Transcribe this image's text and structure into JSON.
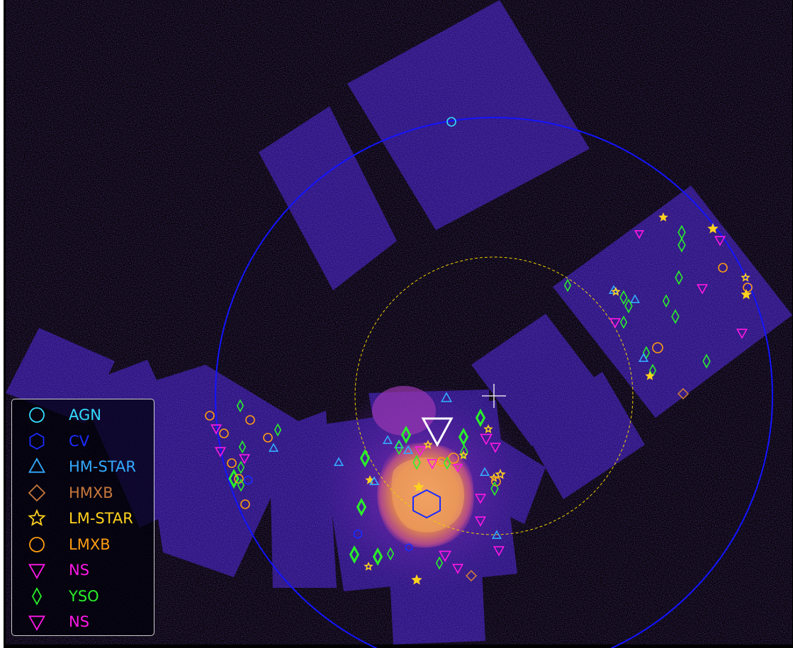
{
  "colors": {
    "background": "#000000",
    "chip": "#3b1a9e",
    "remnant": "#e8955a",
    "big_circle": "#1414ff",
    "dashed_circle": "#f0d000",
    "AGN": "#33ddff",
    "CV": "#1a2bff",
    "HM-STAR": "#33aaff",
    "HMXB": "#c8783c",
    "LM-STAR": "#ffd21e",
    "LMXB": "#ff9d12",
    "NS": "#ff17e6",
    "YSO": "#2af02a"
  },
  "legend": {
    "items": [
      {
        "label": "AGN",
        "class": "AGN",
        "shape": "circle"
      },
      {
        "label": "CV",
        "class": "CV",
        "shape": "hexagon"
      },
      {
        "label": "HM-STAR",
        "class": "HM-STAR",
        "shape": "triangle-up"
      },
      {
        "label": "HMXB",
        "class": "HMXB",
        "shape": "diamond"
      },
      {
        "label": "LM-STAR",
        "class": "LM-STAR",
        "shape": "star"
      },
      {
        "label": "LMXB",
        "class": "LMXB",
        "shape": "circle"
      },
      {
        "label": "NS",
        "class": "NS",
        "shape": "triangle-down"
      },
      {
        "label": "YSO",
        "class": "YSO",
        "shape": "thin-diamond"
      },
      {
        "label": "NS",
        "class": "NS",
        "shape": "triangle-down"
      }
    ]
  }
}
